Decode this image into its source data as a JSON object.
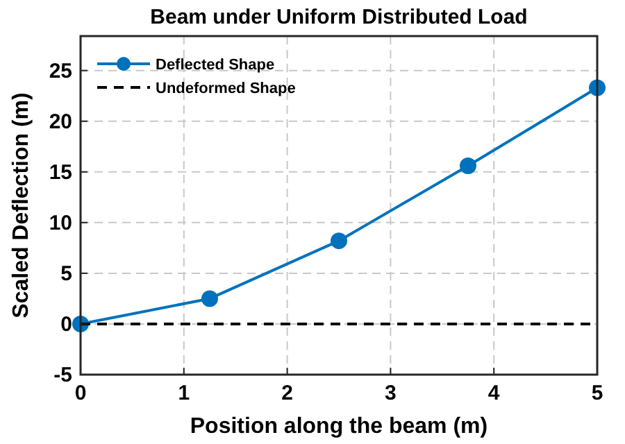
{
  "chart_data": {
    "type": "line",
    "title": "Beam under Uniform Distributed Load",
    "xlabel": "Position along the beam (m)",
    "ylabel": "Scaled Deflection (m)",
    "xlim": [
      0,
      5
    ],
    "xticks": [
      0,
      1,
      2,
      3,
      4,
      5
    ],
    "ylim": [
      -5,
      28.4
    ],
    "yticks": [
      -5,
      0,
      5,
      10,
      15,
      20,
      25
    ],
    "grid": true,
    "legend": "top left",
    "series": [
      {
        "name": "Deflected Shape",
        "color": "#0072bd",
        "x": [
          0,
          1.25,
          2.5,
          3.75,
          5
        ],
        "values": [
          0,
          2.5,
          8.2,
          15.6,
          23.3
        ],
        "marker": "circle",
        "line_style": "solid"
      },
      {
        "name": "Undeformed Shape",
        "color": "#000000",
        "x": [
          0,
          5
        ],
        "values": [
          0,
          0
        ],
        "marker": "none",
        "line_style": "dashed"
      }
    ]
  }
}
